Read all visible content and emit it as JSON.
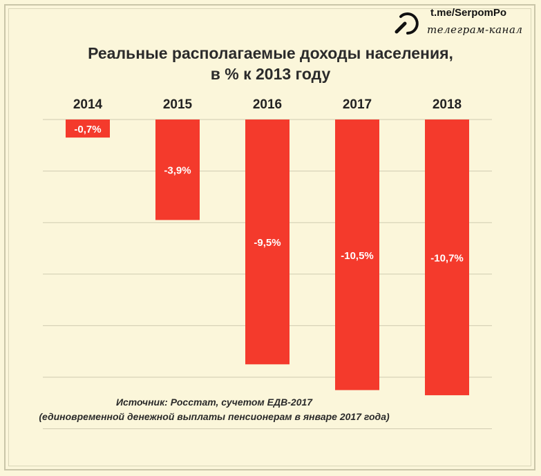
{
  "channel": {
    "link": "t.me/SerpomPo",
    "subtitle": "телеграм-канал"
  },
  "chart_data": {
    "type": "bar",
    "title_line1": "Реальные располагаемые доходы населения,",
    "title_line2": "в % к 2013 году",
    "categories": [
      "2014",
      "2015",
      "2016",
      "2017",
      "2018"
    ],
    "values": [
      -0.7,
      -3.9,
      -9.5,
      -10.5,
      -10.7
    ],
    "value_labels": [
      "-0,7%",
      "-3,9%",
      "-9,5%",
      "-10,5%",
      "-10,7%"
    ],
    "ylim": [
      -12,
      0
    ],
    "grid": true,
    "bar_color": "#f43a2c",
    "source_line1": "Источник: Росстат, сучетом ЕДВ-2017",
    "source_line2": "(единовременной денежной выплаты пенсионерам в январе 2017 года)"
  }
}
